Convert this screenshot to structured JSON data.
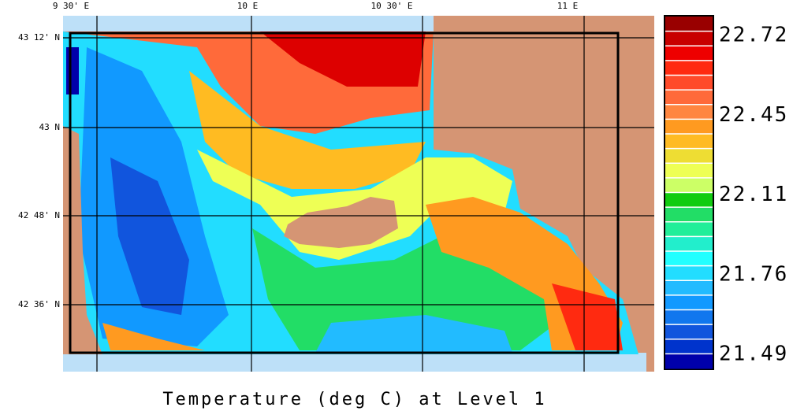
{
  "map": {
    "lon_labels": [
      "9 30' E",
      "10 E",
      "10 30' E",
      "11 E"
    ],
    "lat_labels": [
      "43 12' N",
      "43 N",
      "42 48' N",
      "42 36' N"
    ],
    "colorbar": {
      "labels": [
        "22.72",
        "22.45",
        "22.11",
        "21.76",
        "21.49"
      ],
      "colors": [
        "#990000",
        "#c80000",
        "#ee0000",
        "#ff2a10",
        "#ff4a2a",
        "#ff6a3a",
        "#ff8640",
        "#ff9a20",
        "#ffbb22",
        "#eedd33",
        "#eeff55",
        "#ccff66",
        "#11cc11",
        "#22dd66",
        "#22ee99",
        "#22eecc",
        "#22ffff",
        "#22ddff",
        "#22bbff",
        "#1199ff",
        "#1177ee",
        "#1155dd",
        "#0033cc",
        "#0000aa"
      ]
    },
    "title": "Temperature (deg C) at Level 1"
  }
}
